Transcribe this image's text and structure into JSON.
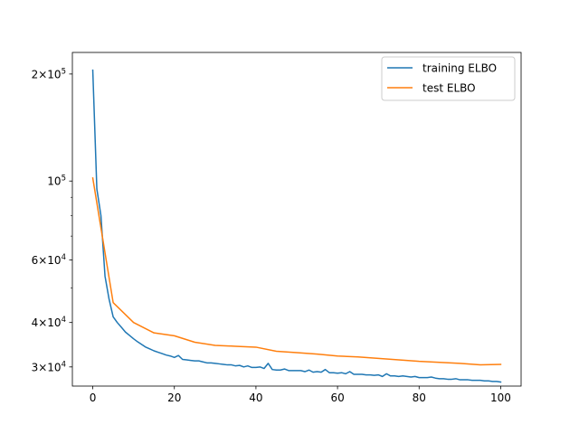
{
  "chart_data": {
    "type": "line",
    "title": "",
    "xlabel": "",
    "ylabel": "",
    "yscale": "log",
    "xlim": [
      -5,
      105
    ],
    "ylim": [
      26500,
      230000
    ],
    "grid": false,
    "legend_position": "top-right",
    "xticks": [
      {
        "value": 0,
        "label": "0"
      },
      {
        "value": 20,
        "label": "20"
      },
      {
        "value": 40,
        "label": "40"
      },
      {
        "value": 60,
        "label": "60"
      },
      {
        "value": 80,
        "label": "80"
      },
      {
        "value": 100,
        "label": "100"
      }
    ],
    "yticks_major": [
      {
        "value": 30000,
        "base": "3",
        "exp": "4"
      },
      {
        "value": 40000,
        "base": "4",
        "exp": "4"
      },
      {
        "value": 60000,
        "base": "6",
        "exp": "4"
      },
      {
        "value": 100000,
        "base": "",
        "exp": "5"
      },
      {
        "value": 200000,
        "base": "2",
        "exp": "5"
      }
    ],
    "yticks_minor": [
      50000,
      70000,
      80000,
      90000
    ],
    "series": [
      {
        "name": "training ELBO",
        "color": "#1f77b4",
        "x": [
          0,
          1,
          2,
          3,
          4,
          5,
          6,
          7,
          8,
          9,
          10,
          11,
          12,
          13,
          14,
          15,
          16,
          17,
          18,
          19,
          20,
          21,
          22,
          23,
          24,
          25,
          26,
          27,
          28,
          29,
          30,
          31,
          32,
          33,
          34,
          35,
          36,
          37,
          38,
          39,
          40,
          41,
          42,
          43,
          44,
          45,
          46,
          47,
          48,
          49,
          50,
          51,
          52,
          53,
          54,
          55,
          56,
          57,
          58,
          59,
          60,
          61,
          62,
          63,
          64,
          65,
          66,
          67,
          68,
          69,
          70,
          71,
          72,
          73,
          74,
          75,
          76,
          77,
          78,
          79,
          80,
          81,
          82,
          83,
          84,
          85,
          86,
          87,
          88,
          89,
          90,
          91,
          92,
          93,
          94,
          95,
          96,
          97,
          98,
          99,
          100
        ],
        "values": [
          205000,
          95000,
          80000,
          54000,
          46500,
          41500,
          40000,
          38800,
          37600,
          36800,
          36000,
          35300,
          34700,
          34100,
          33700,
          33300,
          33000,
          32700,
          32400,
          32200,
          31900,
          32300,
          31500,
          31400,
          31300,
          31200,
          31200,
          31000,
          30800,
          30800,
          30700,
          30600,
          30500,
          30400,
          30400,
          30200,
          30300,
          30000,
          30200,
          29900,
          29900,
          30000,
          29700,
          30700,
          29500,
          29400,
          29400,
          29600,
          29300,
          29300,
          29300,
          29300,
          29100,
          29400,
          29000,
          29100,
          29000,
          29500,
          28900,
          28900,
          28800,
          28900,
          28700,
          29100,
          28600,
          28600,
          28600,
          28500,
          28500,
          28400,
          28500,
          28200,
          28700,
          28300,
          28300,
          28200,
          28300,
          28200,
          28100,
          28200,
          28000,
          28000,
          28000,
          28100,
          27900,
          27800,
          27800,
          27700,
          27700,
          27800,
          27600,
          27600,
          27600,
          27500,
          27500,
          27500,
          27400,
          27400,
          27300,
          27300,
          27200
        ]
      },
      {
        "name": "test ELBO",
        "color": "#ff7f0e",
        "x": [
          0,
          5,
          10,
          15,
          20,
          25,
          30,
          35,
          40,
          45,
          50,
          55,
          60,
          65,
          70,
          75,
          80,
          85,
          90,
          95,
          100
        ],
        "values": [
          102000,
          45500,
          40000,
          37400,
          36700,
          35200,
          34500,
          34300,
          34100,
          33200,
          32900,
          32600,
          32200,
          32000,
          31700,
          31400,
          31100,
          30900,
          30700,
          30400,
          30500
        ]
      }
    ]
  }
}
